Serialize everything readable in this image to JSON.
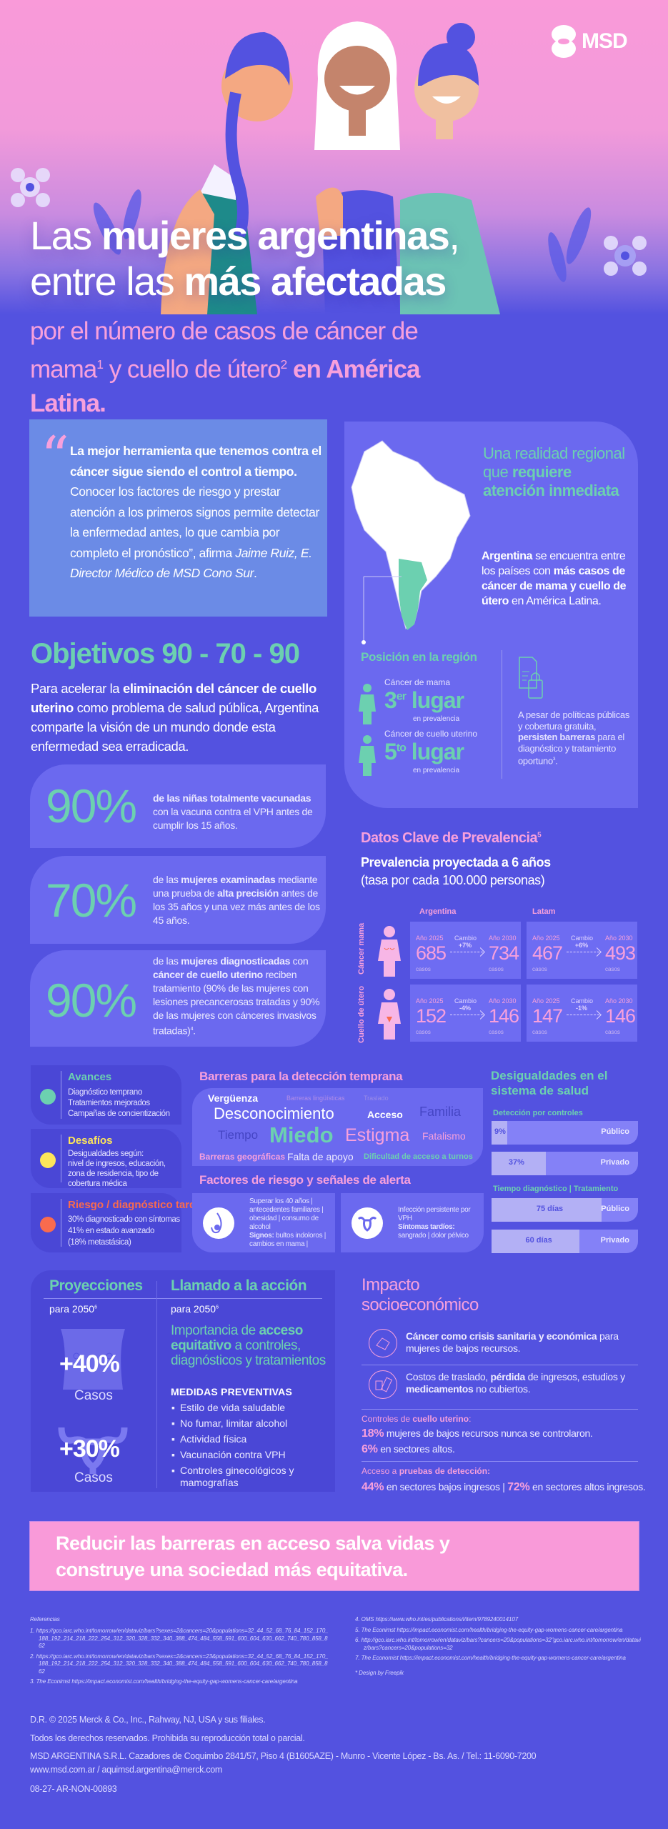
{
  "brand": {
    "logo_text": "MSD",
    "colors": {
      "background": "#5352e0",
      "pink": "#f99ad9",
      "teal": "#6cd0b0",
      "card": "#6b69ef"
    }
  },
  "hero": {
    "title_line1": [
      {
        "t": "Las "
      },
      {
        "t": "mujeres argentinas",
        "s": "b"
      },
      {
        "t": ","
      }
    ],
    "title_line2": [
      {
        "t": "entre las "
      },
      {
        "t": "más afectadas",
        "s": "b"
      }
    ],
    "subtitle": [
      {
        "t": "por el número de casos de cáncer de mama"
      },
      {
        "t": "1",
        "s": "sup"
      },
      {
        "t": " y cuello de útero"
      },
      {
        "t": "2",
        "s": "sup"
      },
      {
        "t": " en América Latina.",
        "s": "b"
      }
    ]
  },
  "quote": {
    "text": [
      {
        "t": "La mejor herramienta que tenemos contra el cáncer sigue siendo el control a tiempo.",
        "s": "b"
      },
      {
        "t": " Conocer los factores de riesgo y prestar atención a los primeros signos permite detectar la enfermedad antes, lo que cambia por completo el pronóstico”, afirma "
      },
      {
        "t": "Jaime Ruiz, E. Director Médico de MSD Cono Sur",
        "s": "i"
      },
      {
        "t": "."
      }
    ]
  },
  "region": {
    "heading": [
      {
        "t": "Una realidad regional que "
      },
      {
        "t": "requiere atención inmediata",
        "s": "b"
      }
    ],
    "text": [
      {
        "t": "Argentina",
        "s": "b"
      },
      {
        "t": " se encuentra entre los países con "
      },
      {
        "t": "más casos de cáncer de mama y cuello de útero",
        "s": "b"
      },
      {
        "t": " en América Latina."
      }
    ],
    "position_title": "Posición en la región",
    "rankings": [
      {
        "label": "Cáncer de mama",
        "rank": "3",
        "suffix": "er",
        "word": "lugar",
        "note": "en prevalencia"
      },
      {
        "label": "Cáncer de cuello uterino",
        "rank": "5",
        "suffix": "to",
        "word": "lugar",
        "note": "en prevalencia"
      }
    ],
    "barriers_note": [
      {
        "t": "A pesar de políticas públicas y cobertura gratuita, "
      },
      {
        "t": "persisten barreras",
        "s": "b"
      },
      {
        "t": " para el diagnóstico y tratamiento oportuno"
      },
      {
        "t": "3",
        "s": "sup"
      },
      {
        "t": "."
      }
    ]
  },
  "objetivos": {
    "title": "Objetivos 90 - 70 - 90",
    "intro": [
      {
        "t": "Para acelerar la "
      },
      {
        "t": "eliminación del cáncer de cuello uterino",
        "s": "b"
      },
      {
        "t": " como problema de salud pública, Argentina comparte la visión de un mundo donde esta enfermedad sea erradicada."
      }
    ],
    "stats": [
      {
        "value": "90",
        "unit": "%",
        "desc": [
          {
            "t": "de las niñas totalmente vacunadas",
            "s": "b"
          },
          {
            "t": " con la vacuna contra el VPH antes de cumplir los 15 años."
          }
        ]
      },
      {
        "value": "70",
        "unit": "%",
        "desc": [
          {
            "t": "de las "
          },
          {
            "t": "mujeres examinadas",
            "s": "b"
          },
          {
            "t": " mediante una prueba de "
          },
          {
            "t": "alta precisión",
            "s": "b"
          },
          {
            "t": " antes de los 35 años y una vez más antes de los 45 años."
          }
        ]
      },
      {
        "value": "90",
        "unit": "%",
        "desc": [
          {
            "t": "de las "
          },
          {
            "t": "mujeres diagnosticadas",
            "s": "b"
          },
          {
            "t": " con "
          },
          {
            "t": "cáncer de cuello uterino",
            "s": "b"
          },
          {
            "t": " reciben tratamiento (90% de las mujeres con lesiones precancerosas tratadas y 90% de las mujeres con cánceres invasivos tratadas)"
          },
          {
            "t": "4",
            "s": "sup"
          },
          {
            "t": "."
          }
        ]
      }
    ]
  },
  "prevalencia": {
    "title": "Datos Clave de Prevalencia",
    "title_ref": "5",
    "subtitle": "Prevalencia proyectada a 6 años",
    "subtitle2": "(tasa por cada 100.000 personas)",
    "columns": [
      "Argentina",
      "Latam"
    ],
    "rows": [
      {
        "label": "Cáncer mama",
        "cells": [
          {
            "y1": "Año 2025",
            "v1": "685",
            "change_label": "Cambio",
            "change": "+7%",
            "y2": "Año 2030",
            "v2": "734",
            "unit": "casos"
          },
          {
            "y1": "Año 2025",
            "v1": "467",
            "change_label": "Cambio",
            "change": "+6%",
            "y2": "Año 2030",
            "v2": "493",
            "unit": "casos"
          }
        ]
      },
      {
        "label": "Cuello de útero",
        "cells": [
          {
            "y1": "Año 2025",
            "v1": "152",
            "change_label": "Cambio",
            "change": "-4%",
            "y2": "Año 2030",
            "v2": "146",
            "unit": "casos"
          },
          {
            "y1": "Año 2025",
            "v1": "147",
            "change_label": "Cambio",
            "change": "-1%",
            "y2": "Año 2030",
            "v2": "146",
            "unit": "casos"
          }
        ]
      }
    ]
  },
  "status_cards": [
    {
      "title": "Avances",
      "color": "#6cd0b0",
      "lines": [
        "Diagnóstico temprano",
        "Tratamientos mejorados",
        "Campañas de concientización"
      ]
    },
    {
      "title": "Desafíos",
      "color": "#fde65a",
      "lines": [
        "Desigualdades según:",
        "nivel de ingresos, educación,",
        "zona de residencia, tipo de",
        "cobertura médica"
      ]
    },
    {
      "title": "Riesgo / diagnóstico tardío",
      "color": "#f96b4e",
      "lines": [
        "30% diagnosticado con síntomas",
        "41% en estado avanzado",
        "(18% metastásica)"
      ]
    }
  ],
  "barreras": {
    "title": "Barreras para la detección temprana",
    "words": [
      "Vergüenza",
      "Barreras lingüísticas",
      "Traslado",
      "Desconocimiento",
      "Familia",
      "Acceso",
      "Tiempo",
      "Miedo",
      "Fatalismo",
      "Barreras geográficas",
      "Estigma",
      "Falta de apoyo",
      "Dificultad de acceso a turnos"
    ]
  },
  "factores": {
    "title": "Factores de riesgo y señales de alerta",
    "breast": [
      {
        "t": "Superar los 40 años | antecedentes familiares | obesidad | consumo de alcohol"
      },
      {
        "t": "\n"
      },
      {
        "t": "Signos:",
        "s": "b"
      },
      {
        "t": " bultos indoloros | cambios en mama |"
      }
    ],
    "cervix": [
      {
        "t": "Infección persistente por VPH"
      },
      {
        "t": "\n"
      },
      {
        "t": "Síntomas tardíos:",
        "s": "b"
      },
      {
        "t": " sangrado | dolor pélvico"
      }
    ]
  },
  "desigualdades": {
    "title": "Desigualdades en el sistema de salud",
    "detection_title": "Detección por controles",
    "detection": [
      {
        "label": "Público",
        "value": "9%",
        "fraction": 0.09
      },
      {
        "label": "Privado",
        "value": "37%",
        "fraction": 0.37
      }
    ],
    "time_title": "Tiempo diagnóstico | Tratamiento",
    "time": [
      {
        "label": "Público",
        "value": "75 días",
        "fraction": 0.75
      },
      {
        "label": "Privado",
        "value": "60 días",
        "fraction": 0.6
      }
    ]
  },
  "proyecciones": {
    "title": "Proyecciones",
    "period": "para 2050",
    "ref": "6",
    "items": [
      {
        "value": "+40%",
        "label": "Casos"
      },
      {
        "value": "+30%",
        "label": "Casos"
      }
    ]
  },
  "llamado": {
    "title": "Llamado a la acción",
    "period": "para 2050",
    "ref": "6",
    "lead": [
      {
        "t": "Importancia de "
      },
      {
        "t": "acceso equitativo",
        "s": "b"
      },
      {
        "t": " a controles, diagnósticos y tratamientos"
      }
    ],
    "measures_title": "MEDIDAS PREVENTIVAS",
    "measures": [
      "Estilo de vida saludable",
      "No fumar, limitar alcohol",
      "Actividad física",
      "Vacunación contra VPH",
      "Controles ginecológicos y mamografías"
    ]
  },
  "impacto": {
    "title": "Impacto socioeconómico",
    "items": [
      [
        {
          "t": "Cáncer como crisis sanitaria y económica",
          "s": "b"
        },
        {
          "t": " para mujeres de bajos recursos."
        }
      ],
      [
        {
          "t": "Costos de traslado, "
        },
        {
          "t": "pérdida",
          "s": "b"
        },
        {
          "t": " de ingresos, estudios y "
        },
        {
          "t": "medicamentos",
          "s": "b"
        },
        {
          "t": " no cubiertos."
        }
      ]
    ],
    "controles_label": [
      {
        "t": "Controles de "
      },
      {
        "t": "cuello uterino",
        "s": "b"
      },
      {
        "t": ":"
      }
    ],
    "controles": [
      [
        {
          "t": "18%",
          "s": "bp"
        },
        {
          "t": " mujeres de bajos recursos nunca se controlaron."
        }
      ],
      [
        {
          "t": "6%",
          "s": "bp"
        },
        {
          "t": " en sectores altos."
        }
      ]
    ],
    "acceso_label": [
      {
        "t": "Acceso a "
      },
      {
        "t": "pruebas de detección:",
        "s": "b"
      }
    ],
    "acceso": [
      {
        "t": "44%",
        "s": "bp"
      },
      {
        "t": " en sectores bajos ingresos | "
      },
      {
        "t": "72%",
        "s": "bp"
      },
      {
        "t": " en sectores altos ingresos."
      }
    ]
  },
  "cta": {
    "line1": "Reducir las barreras en acceso salva vidas y",
    "line2": "construye  una sociedad más equitativa."
  },
  "references": {
    "title": "Referencias",
    "items": [
      "1.  https://gco.iarc.who.int/tomorrow/en/dataviz/bars?sexes=2&cancers=20&populations=32_44_52_68_76_84_152_170_188_192_214_218_222_254_312_320_328_332_340_388_474_484_558_591_600_604_630_662_740_780_858_862",
      "2.  https://gco.iarc.who.int/tomorrow/en/dataviz/bars?sexes=2&cancers=23&populations=32_44_52_68_76_84_152_170_188_192_214_218_222_254_312_320_328_332_340_388_474_484_558_591_600_604_630_662_740_780_858_862",
      "3.  The Econimst https://impact.economist.com/health/bridging-the-equity-gap-womens-cancer-care/argentina",
      "4.  OMS https://www.who.int/es/publications/i/item/9789240014107",
      "5.  The Econimst https://impact.economist.com/health/bridging-the-equity-gap-womens-cancer-care/argentina",
      "6.  http://gco.iarc.who.int/tomorrow/en/dataviz/bars?cancers=20&populations=32\"gco.iarc.who.int/tomorrow/en/dataviz/bars?cancers=20&populations=32",
      "7.  The Economist https://impact.economist.com/health/bridging-the-equity-gap-womens-cancer-care/argentina",
      "*   Design by Freepik"
    ]
  },
  "footer": {
    "copyright": "D.R. © 2025 Merck & Co., Inc., Rahway, NJ, USA y sus filiales.",
    "rights": "Todos los derechos reservados. Prohibida su reproducción total o parcial.",
    "address": "MSD ARGENTINA S.R.L. Cazadores de Coquimbo 2841/57, Piso 4 (B1605AZE) - Munro - Vicente López - Bs. As. / Tel.: 11-6090-7200",
    "web": "www.msd.com.ar / aquimsd.argentina@merck.com",
    "code": "08-27- AR-NON-00893"
  }
}
